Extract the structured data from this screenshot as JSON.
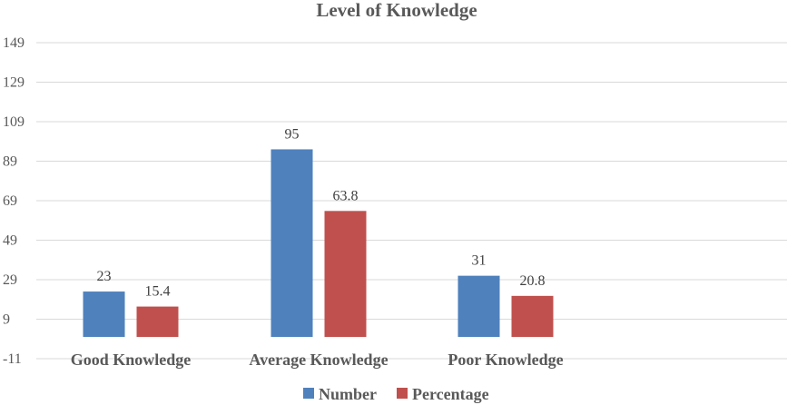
{
  "chart_data": {
    "type": "bar",
    "title": "Level of Knowledge",
    "categories": [
      "Good Knowledge",
      "Average Knowledge",
      "Poor Knowledge"
    ],
    "series": [
      {
        "name": "Number",
        "values": [
          23,
          95,
          31
        ],
        "labels": [
          "23",
          "95",
          "31"
        ],
        "color": "#4f81bd"
      },
      {
        "name": "Percentage",
        "values": [
          15.4,
          63.8,
          20.8
        ],
        "labels": [
          "15.4",
          "63.8",
          "20.8"
        ],
        "color": "#c0504d"
      }
    ],
    "ylim": [
      -11,
      149
    ],
    "yticks": [
      -11,
      9,
      29,
      49,
      69,
      89,
      109,
      129,
      149
    ],
    "grid": true,
    "legend": "bottom",
    "xlabel": "",
    "ylabel": ""
  }
}
